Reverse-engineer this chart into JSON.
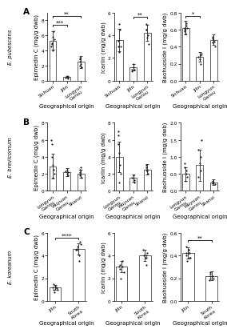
{
  "row_labels": [
    "E. pubescens",
    "E. brevicornum",
    "E. koreanum"
  ],
  "panel_labels": [
    "A",
    "B",
    "C"
  ],
  "A_groups": [
    "Sichuan",
    "Jilin",
    "Longyun\nGansu"
  ],
  "A_epimedinC": [
    5.3,
    0.5,
    2.5
  ],
  "A_epimedinC_err": [
    1.2,
    0.15,
    0.8
  ],
  "A_epimedinC_ylim": [
    0,
    9
  ],
  "A_epimedinC_yticks": [
    0,
    2,
    4,
    6,
    8
  ],
  "A_epimedinC_dots": [
    [
      4.0,
      5.5,
      6.5,
      5.8,
      4.8,
      5.0,
      4.5
    ],
    [
      0.3,
      0.5,
      0.6,
      0.4,
      0.5
    ],
    [
      1.8,
      2.0,
      2.5,
      3.0,
      2.8,
      2.2
    ]
  ],
  "A_epimedinC_sig": [
    [
      0,
      1,
      7.2,
      "***"
    ],
    [
      0,
      2,
      8.3,
      "**"
    ]
  ],
  "A_icariin": [
    3.6,
    1.2,
    4.2
  ],
  "A_icariin_err": [
    1.0,
    0.3,
    0.7
  ],
  "A_icariin_ylim": [
    0,
    6
  ],
  "A_icariin_yticks": [
    0,
    2,
    4,
    6
  ],
  "A_icariin_dots": [
    [
      2.5,
      3.0,
      4.5,
      5.0,
      3.5,
      3.0
    ],
    [
      0.8,
      1.0,
      1.2,
      1.5,
      1.0
    ],
    [
      3.2,
      4.0,
      5.0,
      4.5,
      4.5,
      3.8
    ]
  ],
  "A_icariin_sig": [
    [
      1,
      2,
      5.5,
      "**"
    ]
  ],
  "A_baohuoside": [
    0.62,
    0.28,
    0.48
  ],
  "A_baohuoside_err": [
    0.08,
    0.06,
    0.06
  ],
  "A_baohuoside_ylim": [
    0,
    0.8
  ],
  "A_baohuoside_yticks": [
    0.0,
    0.2,
    0.4,
    0.6,
    0.8
  ],
  "A_baohuoside_dots": [
    [
      0.55,
      0.62,
      0.65,
      0.68,
      0.6,
      0.58,
      0.62
    ],
    [
      0.2,
      0.25,
      0.3,
      0.28,
      0.32
    ],
    [
      0.4,
      0.45,
      0.5,
      0.52,
      0.48,
      0.46
    ]
  ],
  "A_baohuoside_sig": [
    [
      0,
      1,
      0.74,
      "*"
    ]
  ],
  "B_groups": [
    "Longyun\nGansu",
    "Wuyuan\nGansu",
    "Shanxi"
  ],
  "B_epimedinC": [
    2.9,
    2.2,
    2.0
  ],
  "B_epimedinC_err": [
    1.5,
    0.5,
    0.5
  ],
  "B_epimedinC_ylim": [
    0,
    8
  ],
  "B_epimedinC_yticks": [
    0,
    2,
    4,
    6,
    8
  ],
  "B_epimedinC_dots": [
    [
      1.5,
      2.0,
      2.5,
      3.0,
      4.0,
      5.5,
      6.0
    ],
    [
      1.8,
      2.0,
      2.5,
      2.3,
      2.2
    ],
    [
      1.5,
      2.0,
      2.5,
      2.2,
      1.8,
      2.8
    ]
  ],
  "B_epimedinC_sig": [],
  "B_icariin": [
    4.0,
    1.5,
    2.5
  ],
  "B_icariin_err": [
    1.8,
    0.4,
    0.6
  ],
  "B_icariin_ylim": [
    0,
    8
  ],
  "B_icariin_yticks": [
    0,
    2,
    4,
    6,
    8
  ],
  "B_icariin_dots": [
    [
      1.0,
      2.0,
      3.0,
      4.5,
      6.5,
      7.0,
      5.5
    ],
    [
      1.0,
      1.5,
      1.8,
      1.5,
      1.3
    ],
    [
      2.0,
      2.5,
      3.0,
      2.8,
      2.5,
      2.3
    ]
  ],
  "B_icariin_sig": [],
  "B_baohuoside": [
    0.5,
    0.75,
    0.25
  ],
  "B_baohuoside_err": [
    0.2,
    0.45,
    0.08
  ],
  "B_baohuoside_ylim": [
    0.0,
    2.0
  ],
  "B_baohuoside_yticks": [
    0.0,
    0.5,
    1.0,
    1.5,
    2.0
  ],
  "B_baohuoside_dots": [
    [
      0.3,
      0.4,
      0.5,
      0.6,
      0.7,
      0.8
    ],
    [
      0.4,
      0.6,
      0.8,
      1.0,
      1.2,
      1.5
    ],
    [
      0.2,
      0.25,
      0.28,
      0.22,
      0.25
    ]
  ],
  "B_baohuoside_sig": [],
  "C_groups": [
    "Jilin",
    "South\nKorea"
  ],
  "C_epimedinC": [
    1.2,
    4.6
  ],
  "C_epimedinC_err": [
    0.2,
    0.5
  ],
  "C_epimedinC_ylim": [
    0,
    6
  ],
  "C_epimedinC_yticks": [
    0,
    2,
    4,
    6
  ],
  "C_epimedinC_dots": [
    [
      0.8,
      1.0,
      1.2,
      1.3,
      1.5,
      1.0,
      1.2,
      1.1
    ],
    [
      3.5,
      4.0,
      4.5,
      5.0,
      5.2,
      4.8,
      4.5,
      4.6
    ]
  ],
  "C_epimedinC_sig": [
    [
      0,
      1,
      5.4,
      "****"
    ]
  ],
  "C_icariin": [
    3.0,
    4.0
  ],
  "C_icariin_err": [
    0.5,
    0.5
  ],
  "C_icariin_ylim": [
    0,
    6
  ],
  "C_icariin_yticks": [
    0,
    2,
    4,
    6
  ],
  "C_icariin_dots": [
    [
      2.0,
      2.5,
      3.0,
      3.5,
      3.2,
      2.8,
      3.0
    ],
    [
      3.2,
      3.8,
      4.0,
      4.5,
      4.2,
      3.8,
      4.0
    ]
  ],
  "C_icariin_sig": [],
  "C_baohuoside": [
    0.42,
    0.22
  ],
  "C_baohuoside_err": [
    0.05,
    0.04
  ],
  "C_baohuoside_ylim": [
    0.0,
    0.6
  ],
  "C_baohuoside_yticks": [
    0.0,
    0.2,
    0.4,
    0.6
  ],
  "C_baohuoside_dots": [
    [
      0.35,
      0.38,
      0.42,
      0.45,
      0.48,
      0.4,
      0.42,
      0.38,
      0.42,
      0.45
    ],
    [
      0.18,
      0.2,
      0.22,
      0.25,
      0.22,
      0.2,
      0.24
    ]
  ],
  "C_baohuoside_sig": [
    [
      0,
      1,
      0.52,
      "**"
    ]
  ],
  "bar_color": "#FFFFFF",
  "bar_edgecolor": "#222222",
  "dot_color": "#222222",
  "error_color": "#222222",
  "background": "#FFFFFF",
  "xlabel": "Geographical origin",
  "col_ylabels": [
    "Epimedin C (mg/g dwb)",
    "Icariin (mg/g dwb)",
    "Baohuoside I (mg/g dwb)"
  ]
}
